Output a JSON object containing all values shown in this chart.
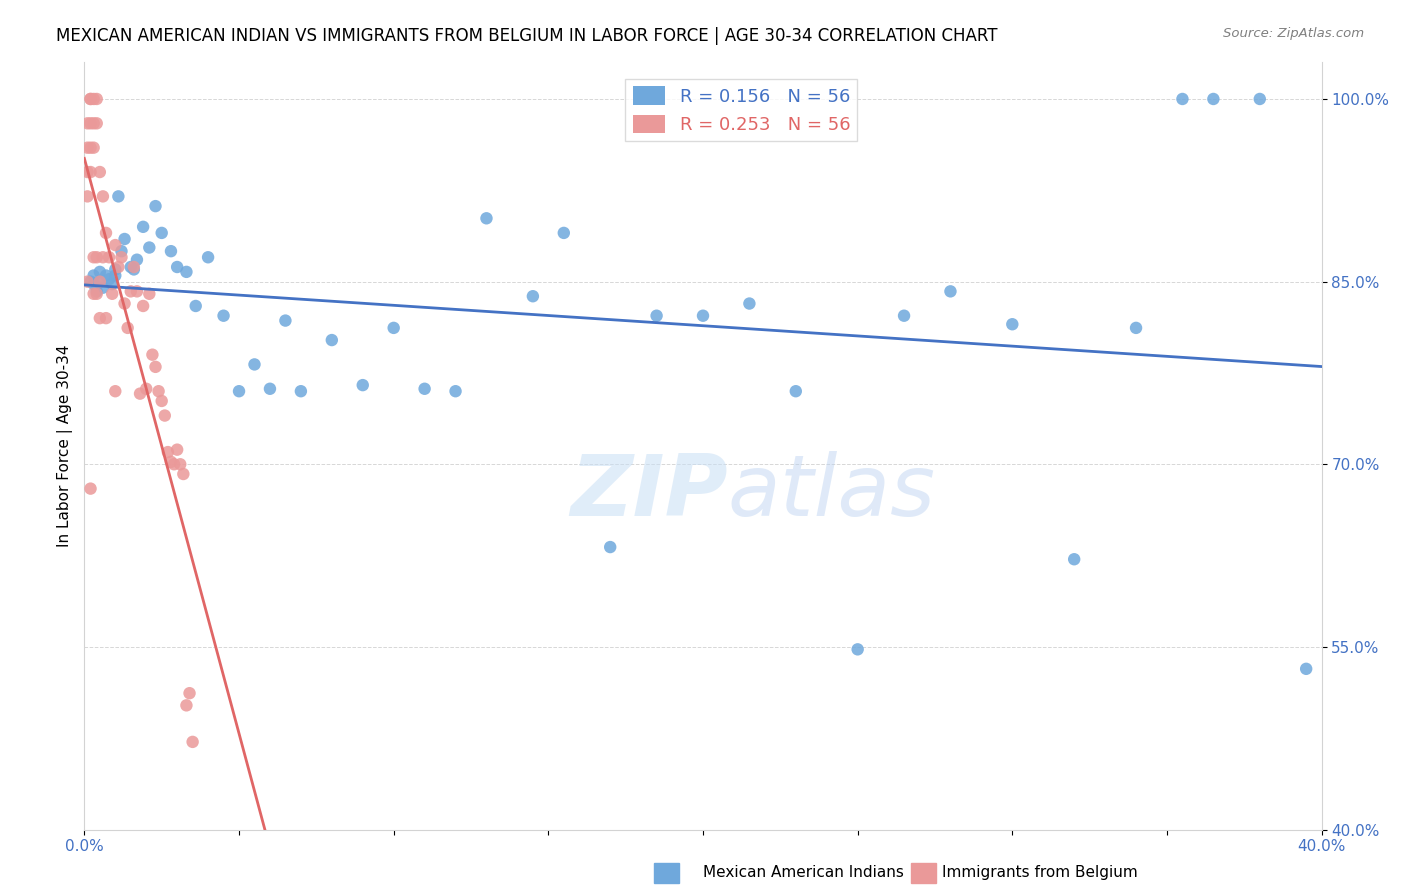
{
  "title": "MEXICAN AMERICAN INDIAN VS IMMIGRANTS FROM BELGIUM IN LABOR FORCE | AGE 30-34 CORRELATION CHART",
  "source": "Source: ZipAtlas.com",
  "ylabel": "In Labor Force | Age 30-34",
  "xlim": [
    0.0,
    0.4
  ],
  "ylim": [
    0.4,
    1.03
  ],
  "xticks": [
    0.0,
    0.05,
    0.1,
    0.15,
    0.2,
    0.25,
    0.3,
    0.35,
    0.4
  ],
  "xticklabels": [
    "0.0%",
    "",
    "",
    "",
    "",
    "",
    "",
    "",
    "40.0%"
  ],
  "yticks": [
    0.4,
    0.55,
    0.7,
    0.85,
    1.0
  ],
  "yticklabels": [
    "40.0%",
    "55.0%",
    "70.0%",
    "85.0%",
    "100.0%"
  ],
  "blue_R": 0.156,
  "blue_N": 56,
  "pink_R": 0.253,
  "pink_N": 56,
  "blue_color": "#6fa8dc",
  "pink_color": "#ea9999",
  "blue_line_color": "#4472c4",
  "pink_line_color": "#e06666",
  "watermark_zip": "ZIP",
  "watermark_atlas": "atlas",
  "legend_label_blue": "Mexican American Indians",
  "legend_label_pink": "Immigrants from Belgium",
  "blue_x": [
    0.002,
    0.003,
    0.003,
    0.004,
    0.005,
    0.005,
    0.006,
    0.007,
    0.008,
    0.009,
    0.01,
    0.01,
    0.011,
    0.012,
    0.013,
    0.015,
    0.016,
    0.017,
    0.019,
    0.021,
    0.023,
    0.025,
    0.028,
    0.03,
    0.033,
    0.036,
    0.04,
    0.045,
    0.05,
    0.055,
    0.06,
    0.065,
    0.07,
    0.08,
    0.09,
    0.1,
    0.11,
    0.12,
    0.13,
    0.145,
    0.155,
    0.17,
    0.185,
    0.2,
    0.215,
    0.23,
    0.25,
    0.265,
    0.28,
    0.3,
    0.32,
    0.34,
    0.355,
    0.365,
    0.38,
    0.395
  ],
  "blue_y": [
    0.85,
    0.855,
    0.848,
    0.842,
    0.858,
    0.85,
    0.845,
    0.855,
    0.852,
    0.848,
    0.86,
    0.855,
    0.92,
    0.875,
    0.885,
    0.862,
    0.86,
    0.868,
    0.895,
    0.878,
    0.912,
    0.89,
    0.875,
    0.862,
    0.858,
    0.83,
    0.87,
    0.822,
    0.76,
    0.782,
    0.762,
    0.818,
    0.76,
    0.802,
    0.765,
    0.812,
    0.762,
    0.76,
    0.902,
    0.838,
    0.89,
    0.632,
    0.822,
    0.822,
    0.832,
    0.76,
    0.548,
    0.822,
    0.842,
    0.815,
    0.622,
    0.812,
    1.0,
    1.0,
    1.0,
    0.532
  ],
  "pink_x": [
    0.001,
    0.001,
    0.001,
    0.001,
    0.001,
    0.002,
    0.002,
    0.002,
    0.002,
    0.002,
    0.002,
    0.003,
    0.003,
    0.003,
    0.003,
    0.003,
    0.004,
    0.004,
    0.004,
    0.004,
    0.005,
    0.005,
    0.005,
    0.006,
    0.006,
    0.007,
    0.007,
    0.008,
    0.009,
    0.01,
    0.01,
    0.011,
    0.012,
    0.013,
    0.014,
    0.015,
    0.016,
    0.017,
    0.018,
    0.019,
    0.02,
    0.021,
    0.022,
    0.023,
    0.024,
    0.025,
    0.026,
    0.027,
    0.028,
    0.029,
    0.03,
    0.031,
    0.032,
    0.033,
    0.034,
    0.035
  ],
  "pink_y": [
    0.98,
    0.96,
    0.94,
    0.92,
    0.85,
    1.0,
    1.0,
    0.98,
    0.96,
    0.94,
    0.68,
    1.0,
    0.98,
    0.96,
    0.87,
    0.84,
    1.0,
    0.98,
    0.87,
    0.84,
    0.94,
    0.85,
    0.82,
    0.92,
    0.87,
    0.89,
    0.82,
    0.87,
    0.84,
    0.88,
    0.76,
    0.862,
    0.87,
    0.832,
    0.812,
    0.842,
    0.862,
    0.842,
    0.758,
    0.83,
    0.762,
    0.84,
    0.79,
    0.78,
    0.76,
    0.752,
    0.74,
    0.71,
    0.702,
    0.7,
    0.712,
    0.7,
    0.692,
    0.502,
    0.512,
    0.472
  ]
}
